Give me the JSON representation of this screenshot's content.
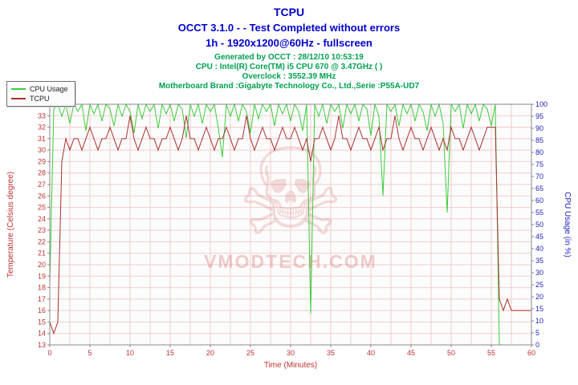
{
  "header": {
    "title": "TCPU",
    "status_line": "OCCT 3.1.0 -  - Test Completed without errors",
    "config_line": "1h - 1920x1200@60Hz - fullscreen",
    "info_lines": [
      "Generated by OCCT : 28/12/10 10:53:19",
      "CPU : Intel(R) Core(TM) i5 CPU 670 @ 3.47GHz (  )",
      "Overclock : 3552.39 MHz",
      "Motherboard Brand :Gigabyte Technology Co., Ltd.,Serie :P55A-UD7"
    ]
  },
  "legend": {
    "items": [
      {
        "label": "CPU Usage",
        "color": "#3ccc3c"
      },
      {
        "label": "TCPU",
        "color": "#a83232"
      }
    ]
  },
  "watermark": {
    "glyph": "☠",
    "text": "VMODTECH.COM"
  },
  "colors": {
    "title_blue": "#0000cc",
    "info_green": "#00a050",
    "axis_left_red": "#c03030",
    "axis_right_blue": "#2020c0",
    "grid_pink": "#f0cdcd",
    "plot_bg": "#fcfcfc",
    "plot_border": "#8a8a8a"
  },
  "chart_data": {
    "type": "line",
    "title": "TCPU",
    "xlabel": "Time (Minutes)",
    "ylabel_left": "Temperature (Celsius degree)",
    "ylabel_right": "CPU Usage (in %)",
    "grid": true,
    "legend_position": "top-left",
    "x_range": [
      0,
      60
    ],
    "x_ticks": [
      0,
      5,
      10,
      15,
      20,
      25,
      30,
      35,
      40,
      45,
      50,
      55,
      60
    ],
    "x_minor_step": 2.5,
    "left_axis": {
      "range": [
        13,
        34
      ],
      "ticks": [
        13,
        14,
        15,
        16,
        17,
        18,
        19,
        20,
        21,
        22,
        23,
        24,
        25,
        26,
        27,
        28,
        29,
        30,
        31,
        32,
        33,
        34
      ]
    },
    "right_axis": {
      "range": [
        0,
        100
      ],
      "ticks": [
        0,
        5,
        10,
        15,
        20,
        25,
        30,
        35,
        40,
        45,
        50,
        55,
        60,
        65,
        70,
        75,
        80,
        85,
        90,
        95,
        100
      ]
    },
    "x_step": 0.5,
    "series": [
      {
        "name": "CPU Usage",
        "axis": "right",
        "color": "#3ccc3c",
        "values": [
          25,
          98,
          100,
          95,
          100,
          92,
          100,
          97,
          100,
          89,
          100,
          96,
          100,
          93,
          100,
          98,
          91,
          100,
          95,
          100,
          97,
          88,
          100,
          94,
          100,
          97,
          100,
          90,
          100,
          96,
          100,
          93,
          100,
          98,
          86,
          100,
          95,
          100,
          92,
          100,
          97,
          100,
          90,
          78,
          100,
          95,
          100,
          93,
          100,
          97,
          88,
          100,
          94,
          100,
          97,
          100,
          91,
          100,
          96,
          100,
          93,
          100,
          97,
          89,
          100,
          13,
          100,
          95,
          100,
          92,
          100,
          97,
          100,
          90,
          100,
          96,
          100,
          93,
          100,
          98,
          87,
          100,
          95,
          62,
          100,
          97,
          100,
          91,
          100,
          96,
          100,
          93,
          100,
          97,
          89,
          100,
          95,
          100,
          92,
          55,
          100,
          97,
          100,
          90,
          100,
          96,
          100,
          93,
          100,
          98,
          91,
          100,
          0,
          0,
          0,
          0,
          0,
          0,
          0,
          0,
          0
        ]
      },
      {
        "name": "TCPU",
        "axis": "left",
        "color": "#a83232",
        "values": [
          15,
          14,
          15,
          29,
          31,
          30,
          31,
          31,
          30,
          31,
          32,
          31,
          30,
          31,
          31,
          32,
          31,
          30,
          31,
          31,
          33,
          31,
          30,
          31,
          32,
          31,
          31,
          30,
          31,
          31,
          32,
          31,
          30,
          31,
          33,
          31,
          31,
          30,
          31,
          32,
          31,
          30,
          31,
          31,
          32,
          31,
          30,
          31,
          31,
          33,
          31,
          30,
          31,
          32,
          31,
          31,
          30,
          31,
          32,
          31,
          31,
          32,
          31,
          30,
          31,
          29,
          31,
          31,
          32,
          31,
          30,
          31,
          33,
          31,
          31,
          30,
          31,
          32,
          31,
          31,
          30,
          31,
          32,
          30,
          31,
          31,
          33,
          31,
          30,
          31,
          32,
          31,
          31,
          30,
          31,
          32,
          31,
          30,
          31,
          30,
          32,
          31,
          31,
          30,
          31,
          32,
          31,
          30,
          31,
          32,
          32,
          32,
          17,
          16,
          17,
          16,
          16,
          16,
          16,
          16,
          16
        ]
      }
    ]
  }
}
